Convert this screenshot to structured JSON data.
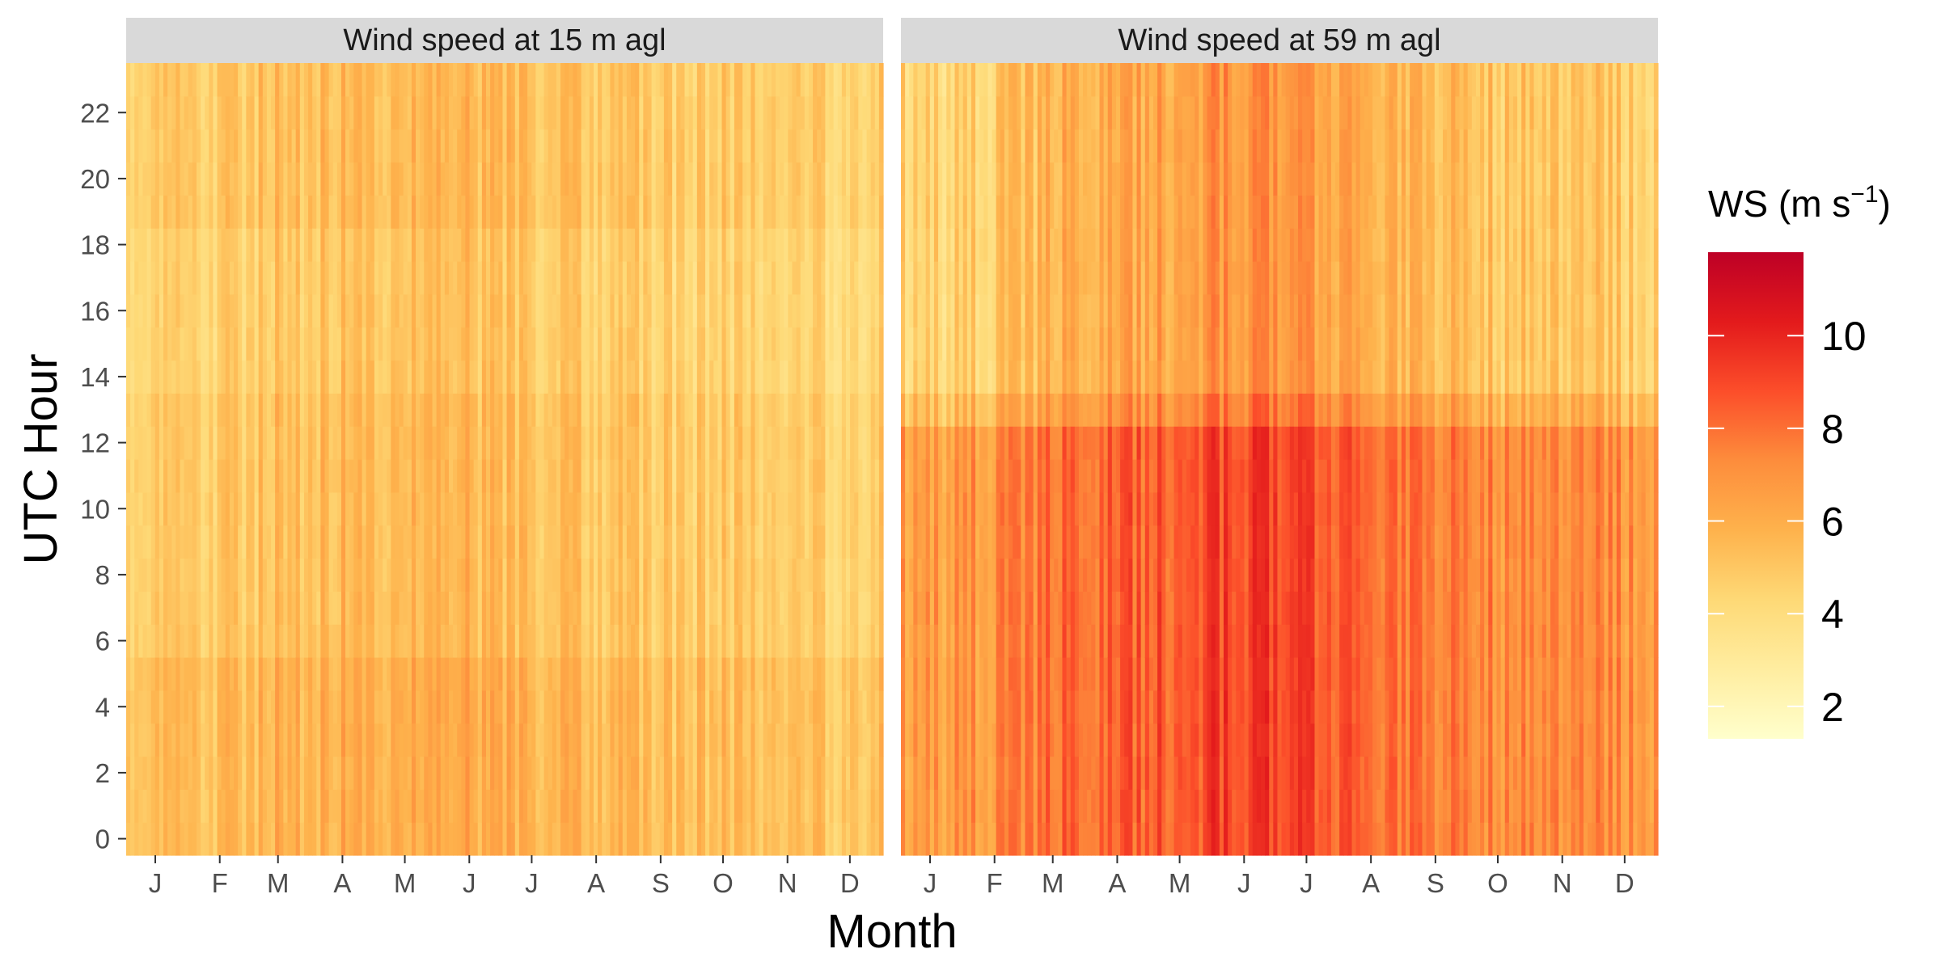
{
  "chart_data": {
    "type": "heatmap",
    "facets": [
      {
        "title": "Wind speed at 15 m agl",
        "base_ws_by_month": [
          4.4,
          4.9,
          5.3,
          5.5,
          5.5,
          5.6,
          5.2,
          5.0,
          4.7,
          4.8,
          4.7,
          4.6
        ],
        "diurnal_amplitude": 0.5,
        "peak_hours": [
          0,
          5
        ],
        "trough_hours": [
          14,
          18
        ],
        "noise": 0.9
      },
      {
        "title": "Wind speed at 59 m agl",
        "base_ws_by_month": [
          5.2,
          5.7,
          6.6,
          7.0,
          7.4,
          8.0,
          7.7,
          7.0,
          6.2,
          5.9,
          5.8,
          5.7
        ],
        "diurnal_amplitude": 1.3,
        "peak_hours": [
          0,
          12
        ],
        "trough_hours": [
          14,
          23
        ],
        "noise": 1.1
      }
    ],
    "x_ticks": [
      "J",
      "F",
      "M",
      "A",
      "M",
      "J",
      "J",
      "A",
      "S",
      "O",
      "N",
      "D"
    ],
    "y_ticks": [
      0,
      2,
      4,
      6,
      8,
      10,
      12,
      14,
      16,
      18,
      20,
      22
    ],
    "xlabel": "Month",
    "ylabel": "UTC Hour",
    "x_range": [
      1,
      365
    ],
    "y_range": [
      -0.5,
      23.5
    ],
    "legend": {
      "title_main": "WS (m s",
      "title_sup": "−1",
      "title_close": ")",
      "range": [
        1.3,
        11.8
      ],
      "ticks": [
        2,
        4,
        6,
        8,
        10
      ],
      "colors": [
        "#ffffcc",
        "#ffeda0",
        "#fed976",
        "#feb24c",
        "#fd8d3c",
        "#fc4e2a",
        "#e31a1c",
        "#bd0026"
      ],
      "position": "right"
    }
  }
}
